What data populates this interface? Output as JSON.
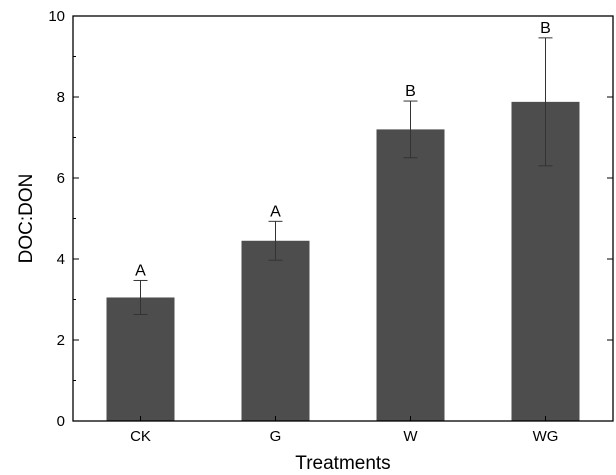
{
  "chart_data": {
    "type": "bar",
    "title": "",
    "xlabel": "Treatments",
    "ylabel": "DOC:DON",
    "ylim": [
      0,
      10
    ],
    "yticks": [
      0,
      2,
      4,
      6,
      8,
      10
    ],
    "categories": [
      "CK",
      "G",
      "W",
      "WG"
    ],
    "values": [
      3.05,
      4.45,
      7.2,
      7.88
    ],
    "errors": [
      0.42,
      0.48,
      0.7,
      1.58
    ],
    "significance_labels": [
      "A",
      "A",
      "B",
      "B"
    ],
    "grid": false,
    "legend": "none",
    "bar_color": "#4d4d4d"
  }
}
